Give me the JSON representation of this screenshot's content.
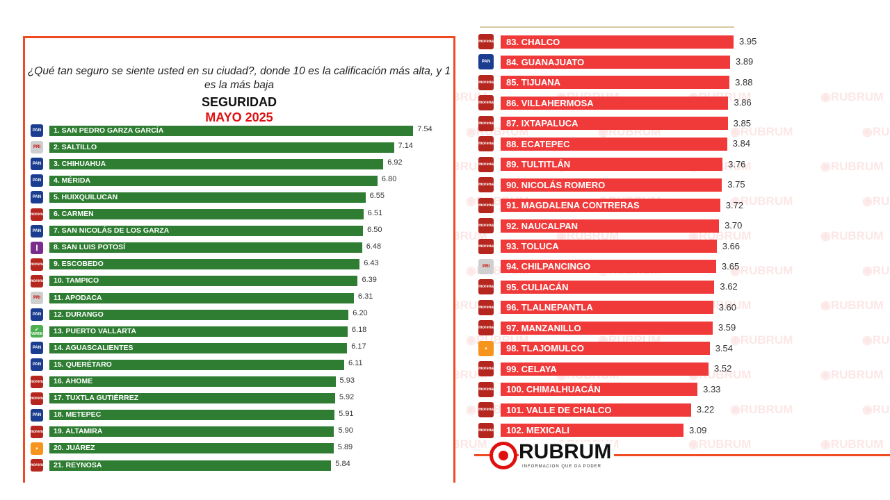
{
  "chart_data": [
    {
      "type": "bar",
      "orientation": "horizontal",
      "question": "¿Qué tan seguro se siente usted en su ciudad?, donde 10 es la calificación más alta, y  1 es la más baja",
      "title": "SEGURIDAD",
      "subtitle": "MAYO 2025",
      "bar_color": "#2e7d32",
      "categories": [
        "1. SAN PEDRO GARZA GARCÍA",
        "2. SALTILLO",
        "3. CHIHUAHUA",
        "4. MÉRIDA",
        "5. HUIXQUILUCAN",
        "6. CARMEN",
        "7. SAN NICOLÁS DE LOS GARZA",
        "8. SAN LUIS POTOSÍ",
        "9. ESCOBEDO",
        "10. TAMPICO",
        "11. APODACA",
        "12. DURANGO",
        "13. PUERTO VALLARTA",
        "14. AGUASCALIENTES",
        "15. QUERÉTARO",
        "16. AHOME",
        "17. TUXTLA GUTIÉRREZ",
        "18. METEPEC",
        "19. ALTAMIRA",
        "20. JUÁREZ",
        "21. REYNOSA"
      ],
      "values": [
        7.54,
        7.14,
        6.92,
        6.8,
        6.55,
        6.51,
        6.5,
        6.48,
        6.43,
        6.39,
        6.31,
        6.2,
        6.18,
        6.17,
        6.11,
        5.93,
        5.92,
        5.91,
        5.9,
        5.89,
        5.84
      ],
      "labels": [
        "7.54",
        "7.14",
        "6.92",
        "6.80",
        "6.55",
        "6.51",
        "6.50",
        "6.48",
        "6.43",
        "6.39",
        "6.31",
        "6.20",
        "6.18",
        "6.17",
        "6.11",
        "5.93",
        "5.92",
        "5.91",
        "5.90",
        "5.89",
        "5.84"
      ],
      "parties": [
        "PAN",
        "PRI",
        "PAN",
        "PAN",
        "PAN",
        "morena",
        "PAN",
        "I",
        "morena",
        "morena",
        "PRI",
        "PAN",
        "VERDE",
        "PAN",
        "PAN",
        "morena",
        "morena",
        "PAN",
        "morena",
        "MC",
        "morena"
      ]
    },
    {
      "type": "bar",
      "orientation": "horizontal",
      "bar_color": "#f03a3a",
      "categories": [
        "83. CHALCO",
        "84. GUANAJUATO",
        "85. TIJUANA",
        "86. VILLAHERMOSA",
        "87. IXTAPALUCA",
        "88. ECATEPEC",
        "89. TULTITLÁN",
        "90. NICOLÁS ROMERO",
        "91. MAGDALENA CONTRERAS",
        "92. NAUCALPAN",
        "93. TOLUCA",
        "94. CHILPANCINGO",
        "95. CULIACÁN",
        "96. TLALNEPANTLA",
        "97. MANZANILLO",
        "98. TLAJOMULCO",
        "99. CELAYA",
        "100. CHIMALHUACÁN",
        "101. VALLE DE CHALCO",
        "102. MEXICALI"
      ],
      "values": [
        3.95,
        3.89,
        3.88,
        3.86,
        3.85,
        3.84,
        3.76,
        3.75,
        3.72,
        3.7,
        3.66,
        3.65,
        3.62,
        3.6,
        3.59,
        3.54,
        3.52,
        3.33,
        3.22,
        3.09
      ],
      "labels": [
        "3.95",
        "3.89",
        "3.88",
        "3.86",
        "3.85",
        "3.84",
        "3.76",
        "3.75",
        "3.72",
        "3.70",
        "3.66",
        "3.65",
        "3.62",
        "3.60",
        "3.59",
        "3.54",
        "3.52",
        "3.33",
        "3.22",
        "3.09"
      ],
      "parties": [
        "morena",
        "PAN",
        "morena",
        "morena",
        "morena",
        "morena",
        "morena",
        "morena",
        "morena",
        "morena",
        "morena",
        "PRI",
        "morena",
        "morena",
        "morena",
        "MC",
        "morena",
        "morena",
        "morena",
        "morena"
      ]
    }
  ],
  "party_colors": {
    "PAN": "#1a3d8f",
    "PRI": "#cfcfcf",
    "morena": "#b5261e",
    "I": "#7b2d8e",
    "VERDE": "#4caf50",
    "MC": "#f7941d"
  },
  "brand": {
    "name": "RUBRUM",
    "tagline": "INFORMACION QUE DA PODER",
    "watermark": "RUBRUM"
  }
}
